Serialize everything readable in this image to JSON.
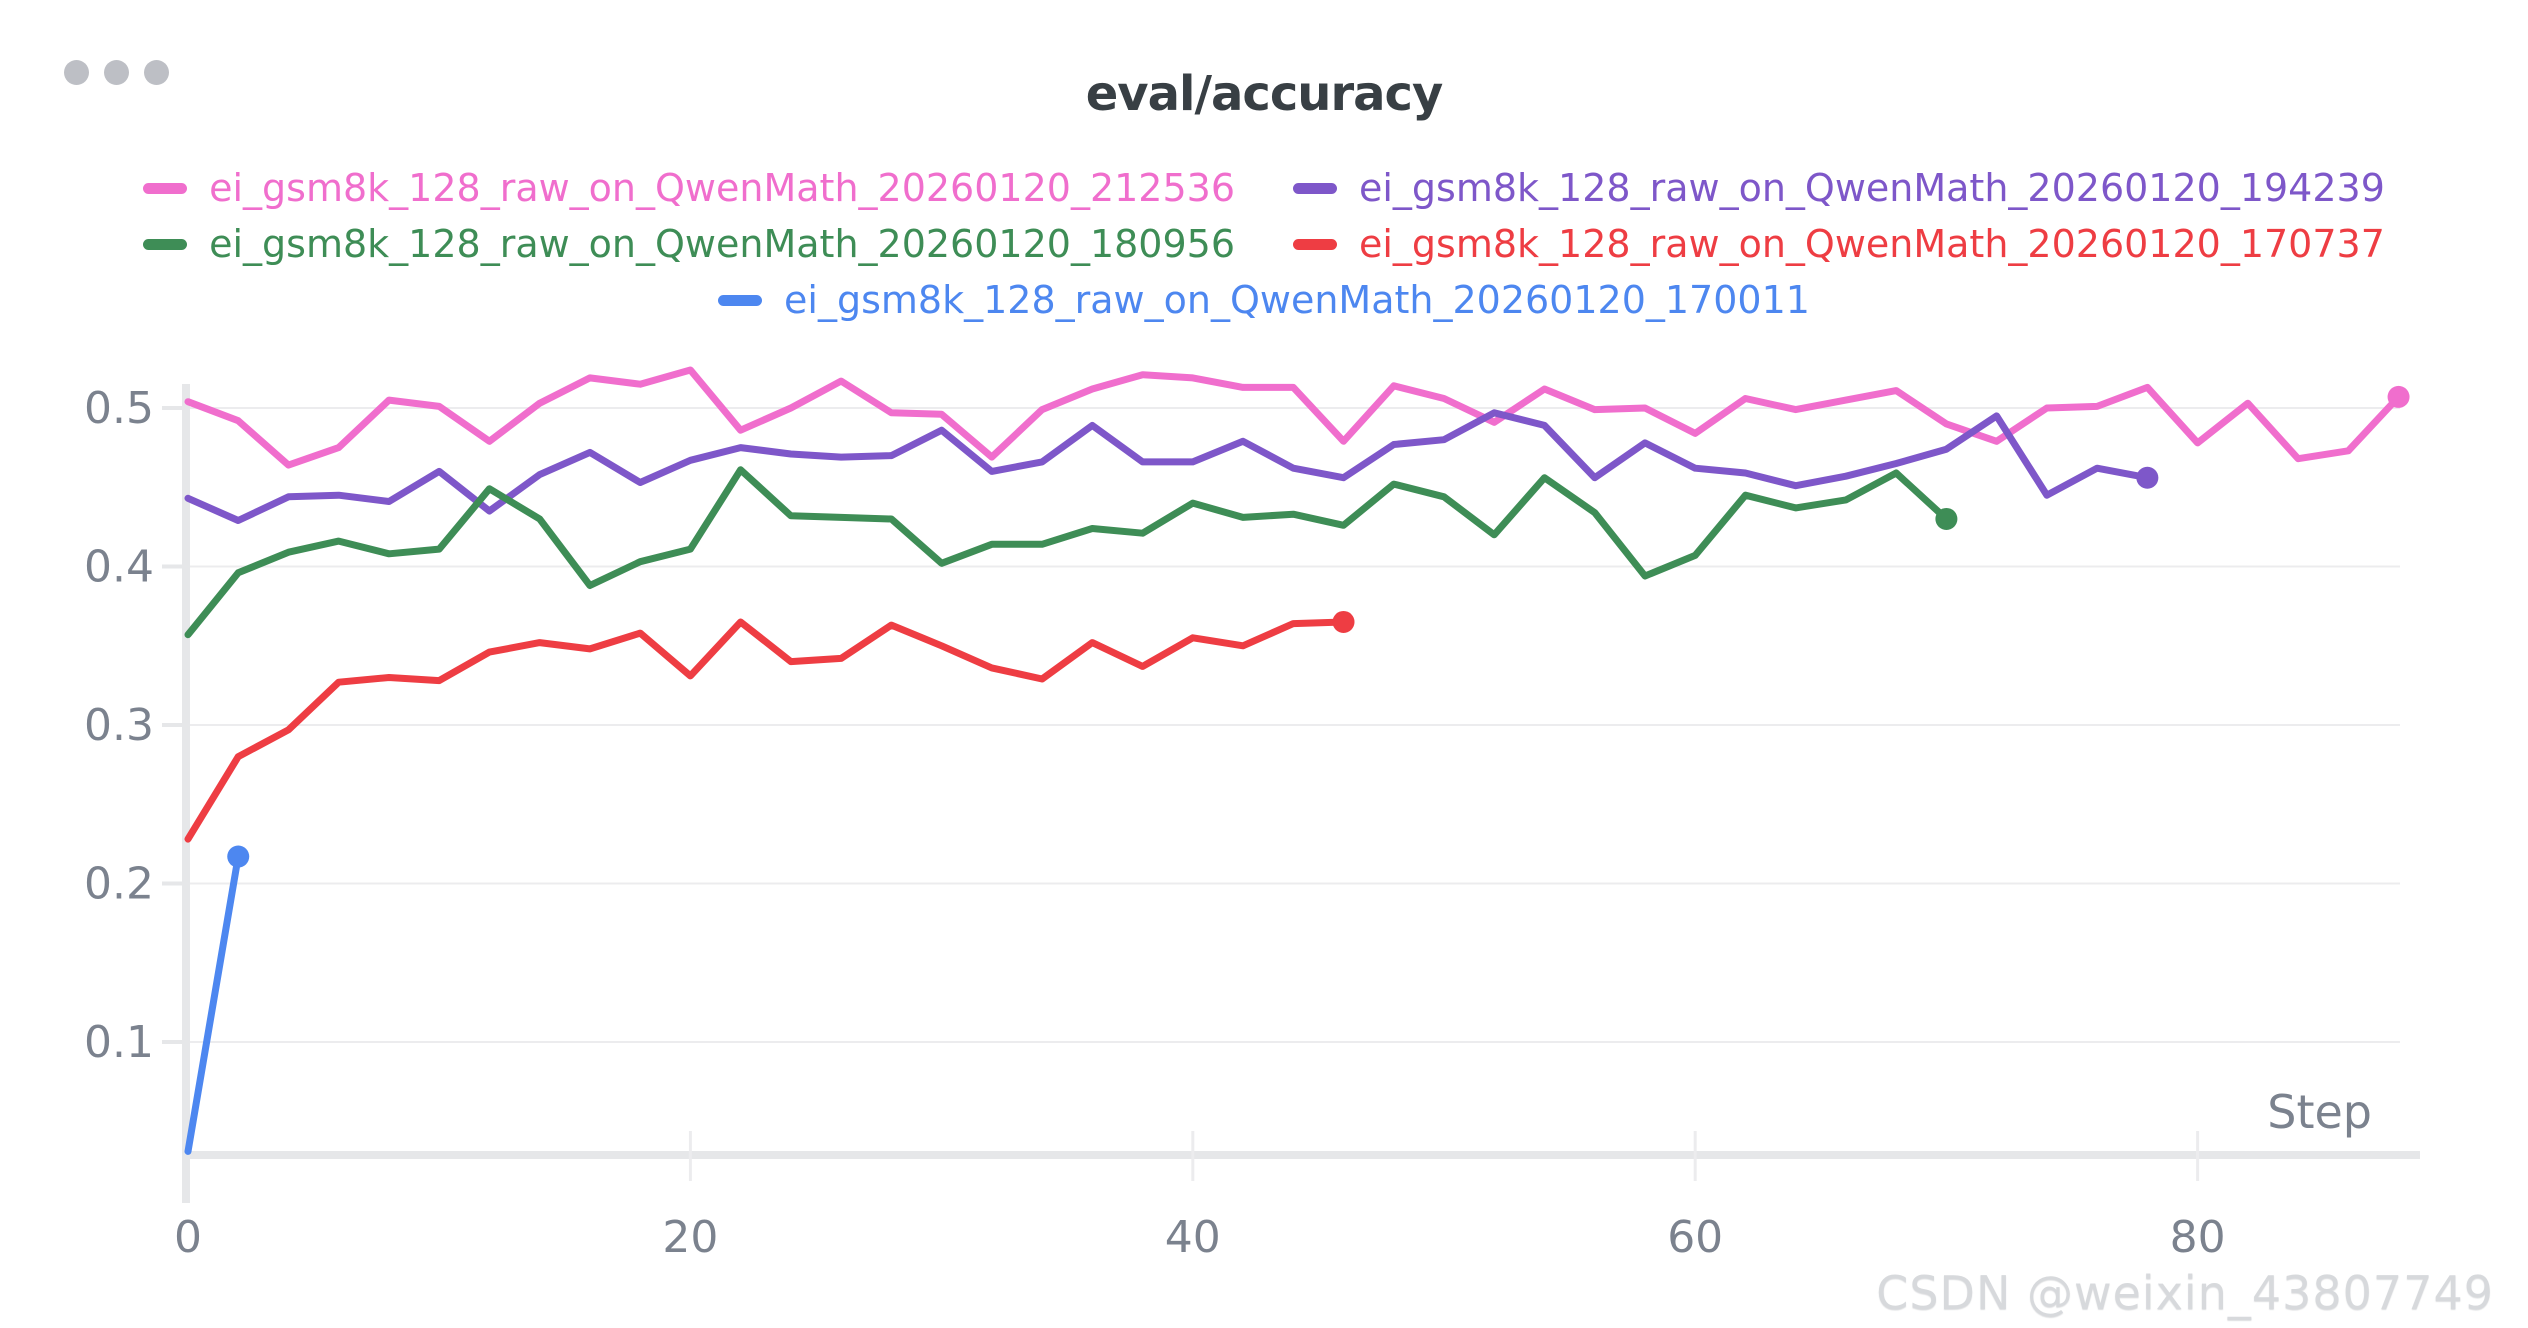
{
  "window": {
    "dots": [
      "window-dot",
      "window-dot",
      "window-dot"
    ]
  },
  "watermark": "CSDN @weixin_43807749",
  "chart_data": {
    "type": "line",
    "title": "eval/accuracy",
    "xlabel": "Step",
    "ylabel": "",
    "x_ticks": [
      0,
      20,
      40,
      60,
      80
    ],
    "x_tick_labels": [
      "0",
      "20",
      "40",
      "60",
      "80"
    ],
    "y_ticks": [
      0.1,
      0.2,
      0.3,
      0.4,
      0.5
    ],
    "y_tick_labels": [
      "0.1",
      "0.2",
      "0.3",
      "0.4",
      "0.5"
    ],
    "x_range": [
      0,
      88
    ],
    "y_range": [
      0.03,
      0.53
    ],
    "grid": "horizontal",
    "legend_position": "top",
    "colors": {
      "grid": "#ececee",
      "axis": "#e6e7e9",
      "tick_text": "#7b828e",
      "title_text": "#383f44"
    },
    "series": [
      {
        "name": "ei_gsm8k_128_raw_on_QwenMath_20260120_212536",
        "color": "#f06ecd",
        "end_dot": true,
        "points": [
          [
            0,
            0.504
          ],
          [
            2,
            0.492
          ],
          [
            4,
            0.464
          ],
          [
            6,
            0.475
          ],
          [
            8,
            0.505
          ],
          [
            10,
            0.501
          ],
          [
            12,
            0.479
          ],
          [
            14,
            0.503
          ],
          [
            16,
            0.519
          ],
          [
            18,
            0.515
          ],
          [
            20,
            0.524
          ],
          [
            22,
            0.486
          ],
          [
            24,
            0.5
          ],
          [
            26,
            0.517
          ],
          [
            28,
            0.497
          ],
          [
            30,
            0.496
          ],
          [
            32,
            0.469
          ],
          [
            34,
            0.499
          ],
          [
            36,
            0.512
          ],
          [
            38,
            0.521
          ],
          [
            40,
            0.519
          ],
          [
            42,
            0.513
          ],
          [
            44,
            0.513
          ],
          [
            46,
            0.479
          ],
          [
            48,
            0.514
          ],
          [
            50,
            0.506
          ],
          [
            52,
            0.491
          ],
          [
            54,
            0.512
          ],
          [
            56,
            0.499
          ],
          [
            58,
            0.5
          ],
          [
            60,
            0.484
          ],
          [
            62,
            0.506
          ],
          [
            64,
            0.499
          ],
          [
            66,
            0.505
          ],
          [
            68,
            0.511
          ],
          [
            70,
            0.49
          ],
          [
            72,
            0.479
          ],
          [
            74,
            0.5
          ],
          [
            76,
            0.501
          ],
          [
            78,
            0.513
          ],
          [
            80,
            0.478
          ],
          [
            82,
            0.503
          ],
          [
            84,
            0.468
          ],
          [
            86,
            0.473
          ],
          [
            88,
            0.507
          ]
        ]
      },
      {
        "name": "ei_gsm8k_128_raw_on_QwenMath_20260120_194239",
        "color": "#7e57c9",
        "end_dot": true,
        "points": [
          [
            0,
            0.443
          ],
          [
            2,
            0.429
          ],
          [
            4,
            0.444
          ],
          [
            6,
            0.445
          ],
          [
            8,
            0.441
          ],
          [
            10,
            0.46
          ],
          [
            12,
            0.435
          ],
          [
            14,
            0.458
          ],
          [
            16,
            0.472
          ],
          [
            18,
            0.453
          ],
          [
            20,
            0.467
          ],
          [
            22,
            0.475
          ],
          [
            24,
            0.471
          ],
          [
            26,
            0.469
          ],
          [
            28,
            0.47
          ],
          [
            30,
            0.486
          ],
          [
            32,
            0.46
          ],
          [
            34,
            0.466
          ],
          [
            36,
            0.489
          ],
          [
            38,
            0.466
          ],
          [
            40,
            0.466
          ],
          [
            42,
            0.479
          ],
          [
            44,
            0.462
          ],
          [
            46,
            0.456
          ],
          [
            48,
            0.477
          ],
          [
            50,
            0.48
          ],
          [
            52,
            0.497
          ],
          [
            54,
            0.489
          ],
          [
            56,
            0.456
          ],
          [
            58,
            0.478
          ],
          [
            60,
            0.462
          ],
          [
            62,
            0.459
          ],
          [
            64,
            0.451
          ],
          [
            66,
            0.457
          ],
          [
            68,
            0.465
          ],
          [
            70,
            0.474
          ],
          [
            72,
            0.495
          ],
          [
            74,
            0.445
          ],
          [
            76,
            0.462
          ],
          [
            78,
            0.456
          ]
        ]
      },
      {
        "name": "ei_gsm8k_128_raw_on_QwenMath_20260120_180956",
        "color": "#3e8d56",
        "end_dot": true,
        "points": [
          [
            0,
            0.357
          ],
          [
            2,
            0.396
          ],
          [
            4,
            0.409
          ],
          [
            6,
            0.416
          ],
          [
            8,
            0.408
          ],
          [
            10,
            0.411
          ],
          [
            12,
            0.449
          ],
          [
            14,
            0.43
          ],
          [
            16,
            0.388
          ],
          [
            18,
            0.403
          ],
          [
            20,
            0.411
          ],
          [
            22,
            0.461
          ],
          [
            24,
            0.432
          ],
          [
            26,
            0.431
          ],
          [
            28,
            0.43
          ],
          [
            30,
            0.402
          ],
          [
            32,
            0.414
          ],
          [
            34,
            0.414
          ],
          [
            36,
            0.424
          ],
          [
            38,
            0.421
          ],
          [
            40,
            0.44
          ],
          [
            42,
            0.431
          ],
          [
            44,
            0.433
          ],
          [
            46,
            0.426
          ],
          [
            48,
            0.452
          ],
          [
            50,
            0.444
          ],
          [
            52,
            0.42
          ],
          [
            54,
            0.456
          ],
          [
            56,
            0.434
          ],
          [
            58,
            0.394
          ],
          [
            60,
            0.407
          ],
          [
            62,
            0.445
          ],
          [
            64,
            0.437
          ],
          [
            66,
            0.442
          ],
          [
            68,
            0.459
          ],
          [
            70,
            0.43
          ]
        ]
      },
      {
        "name": "ei_gsm8k_128_raw_on_QwenMath_20260120_170737",
        "color": "#ee3d43",
        "end_dot": true,
        "points": [
          [
            0,
            0.228
          ],
          [
            2,
            0.28
          ],
          [
            4,
            0.297
          ],
          [
            6,
            0.327
          ],
          [
            8,
            0.33
          ],
          [
            10,
            0.328
          ],
          [
            12,
            0.346
          ],
          [
            14,
            0.352
          ],
          [
            16,
            0.348
          ],
          [
            18,
            0.358
          ],
          [
            20,
            0.331
          ],
          [
            22,
            0.365
          ],
          [
            24,
            0.34
          ],
          [
            26,
            0.342
          ],
          [
            28,
            0.363
          ],
          [
            30,
            0.35
          ],
          [
            32,
            0.336
          ],
          [
            34,
            0.329
          ],
          [
            36,
            0.352
          ],
          [
            38,
            0.337
          ],
          [
            40,
            0.355
          ],
          [
            42,
            0.35
          ],
          [
            44,
            0.364
          ],
          [
            46,
            0.365
          ]
        ]
      },
      {
        "name": "ei_gsm8k_128_raw_on_QwenMath_20260120_170011",
        "color": "#4d87f0",
        "end_dot": true,
        "points": [
          [
            0,
            0.031
          ],
          [
            2,
            0.217
          ]
        ]
      }
    ]
  }
}
